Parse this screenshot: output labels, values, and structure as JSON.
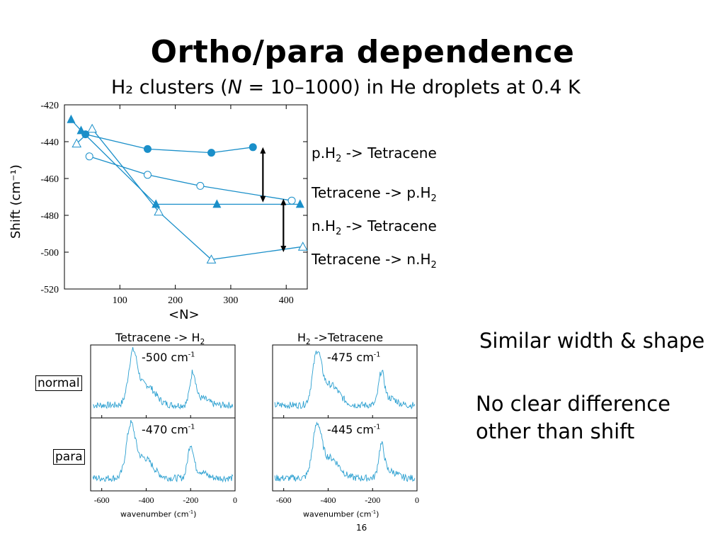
{
  "slide": {
    "title": "Ortho/para dependence",
    "subtitle_prefix": "H₂ clusters (",
    "subtitle_italic": "N",
    "subtitle_suffix": " = 10–1000) in He droplets at 0.4 K",
    "page_number": "16"
  },
  "chart_data": [
    {
      "type": "line",
      "xlabel": "<N>",
      "ylabel": "Shift (cm⁻¹)",
      "xlim": [
        0,
        430
      ],
      "ylim": [
        -520,
        -420
      ],
      "x_ticks": [
        100,
        200,
        300,
        400
      ],
      "y_ticks": [
        -420,
        -440,
        -460,
        -480,
        -500,
        -520
      ],
      "series": [
        {
          "name": "pH₂ -> Tetracene",
          "marker": "filled-circle",
          "color": "#1a8fc9",
          "x": [
            38,
            150,
            265,
            340
          ],
          "y": [
            -436,
            -444,
            -446,
            -443
          ]
        },
        {
          "name": "Tetracene -> pH₂",
          "marker": "open-circle",
          "color": "#1a8fc9",
          "x": [
            45,
            150,
            245,
            410
          ],
          "y": [
            -448,
            -458,
            -464,
            -472
          ]
        },
        {
          "name": "nH₂ -> Tetracene",
          "marker": "filled-triangle",
          "color": "#1a8fc9",
          "x": [
            12,
            30,
            165,
            275,
            425
          ],
          "y": [
            -428,
            -434,
            -474,
            -474,
            -474
          ]
        },
        {
          "name": "Tetracene -> nH₂",
          "marker": "open-triangle",
          "color": "#1a8fc9",
          "x": [
            22,
            50,
            170,
            265,
            430
          ],
          "y": [
            -441,
            -433,
            -478,
            -504,
            -497
          ]
        }
      ],
      "arrows": [
        {
          "x": 358,
          "y_from": -443,
          "y_to": -473
        },
        {
          "x": 395,
          "y_from": -471,
          "y_to": -500
        }
      ],
      "annotations": [
        "p.H₂ -> Tetracene",
        "Tetracene -> p.H₂",
        "n.H₂ -> Tetracene",
        "Tetracene -> n.H₂"
      ]
    }
  ],
  "spectra": {
    "col1_title": "Tetracene -> H₂",
    "col2_title": "H₂ ->Tetracene",
    "row_labels": [
      "normal",
      "para"
    ],
    "shifts": {
      "c1_normal": "-500 cm",
      "c2_normal": "-475 cm",
      "c1_para": "-470 cm",
      "c2_para": "-445 cm"
    },
    "sup": "-1",
    "x_ticks": [
      "-600",
      "-400",
      "-200",
      "0"
    ],
    "xlabel": "wavenumber (cm",
    "xlabel_close": ")",
    "peak_positions_cm": {
      "c1_normal": [
        -460,
        -190
      ],
      "c1_para": [
        -470,
        -200
      ],
      "c2_normal": [
        -450,
        -160
      ],
      "c2_para": [
        -450,
        -160
      ]
    }
  },
  "notes": {
    "line1": "Similar width & shape",
    "line2": "No clear difference",
    "line3": "other than shift"
  }
}
